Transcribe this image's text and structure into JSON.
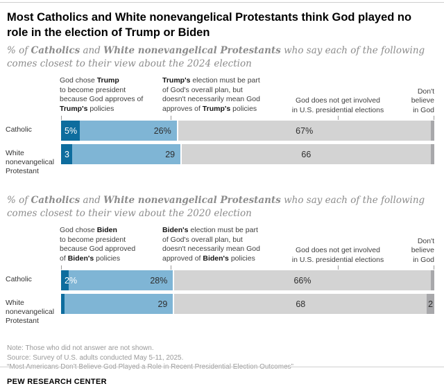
{
  "header": {
    "title": "Most Catholics and White nonevangelical Protestants think God played no role in the election of Trump or Biden"
  },
  "colors": {
    "dark_blue": "#0e6d9e",
    "light_blue": "#7fb5d5",
    "gray": "#d3d3d3",
    "dark_gray": "#a8a8ab",
    "rule": "#cfcfcf"
  },
  "chart_data": [
    {
      "type": "bar",
      "stacked": true,
      "orientation": "horizontal",
      "unit": "%",
      "axis_range": [
        0,
        100
      ],
      "election": "2024",
      "subtitle_parts": [
        {
          "t": "% of "
        },
        {
          "t": "Catholics",
          "b": true
        },
        {
          "t": " and "
        },
        {
          "t": "White nonevangelical Protestants",
          "b": true
        },
        {
          "t": " who say each of the following comes closest to their view about the 2024 election"
        }
      ],
      "column_headers": [
        {
          "parts": [
            {
              "t": "God chose "
            },
            {
              "t": "Trump",
              "b": true
            },
            {
              "t": "\nto become president\nbecause God approves of\n"
            },
            {
              "t": "Trump's",
              "b": true
            },
            {
              "t": " policies"
            }
          ]
        },
        {
          "parts": [
            {
              "t": "Trump's",
              "b": true
            },
            {
              "t": " election must be part\nof God's overall plan, but\ndoesn't necessarily mean God\napproves of "
            },
            {
              "t": "Trump's",
              "b": true
            },
            {
              "t": " policies"
            }
          ]
        },
        {
          "parts": [
            {
              "t": "God does not get involved\nin U.S. presidential elections"
            }
          ]
        },
        {
          "parts": [
            {
              "t": "Don't\nbelieve\nin God"
            }
          ]
        }
      ],
      "categories": [
        "Catholic",
        "White nonevangelical Protestant"
      ],
      "series": [
        {
          "name": "God chose Trump to become president because God approves of Trump's policies",
          "color": "dark_blue",
          "values": [
            5,
            3
          ]
        },
        {
          "name": "Trump's election must be part of God's overall plan, but doesn't necessarily mean God approves of Trump's policies",
          "color": "light_blue",
          "values": [
            26,
            29
          ]
        },
        {
          "name": "God does not get involved in U.S. presidential elections",
          "color": "gray",
          "values": [
            67,
            66
          ]
        },
        {
          "name": "Don't believe in God",
          "color": "dark_gray",
          "values": [
            1,
            1
          ]
        }
      ],
      "value_labels": [
        [
          "5%",
          "26%",
          "67%",
          ""
        ],
        [
          "3",
          "29",
          "66",
          ""
        ]
      ]
    },
    {
      "type": "bar",
      "stacked": true,
      "orientation": "horizontal",
      "unit": "%",
      "axis_range": [
        0,
        100
      ],
      "election": "2020",
      "subtitle_parts": [
        {
          "t": "% of "
        },
        {
          "t": "Catholics",
          "b": true
        },
        {
          "t": " and "
        },
        {
          "t": "White nonevangelical Protestants",
          "b": true
        },
        {
          "t": " who say each of the following comes closest to their view about the 2020 election"
        }
      ],
      "column_headers": [
        {
          "parts": [
            {
              "t": "God chose "
            },
            {
              "t": "Biden",
              "b": true
            },
            {
              "t": "\nto become president\nbecause God approved\nof "
            },
            {
              "t": "Biden's",
              "b": true
            },
            {
              "t": " policies"
            }
          ]
        },
        {
          "parts": [
            {
              "t": "Biden's",
              "b": true
            },
            {
              "t": " election must be part\nof God's overall plan, but\ndoesn't necessarily mean God\napproved of "
            },
            {
              "t": "Biden's",
              "b": true
            },
            {
              "t": " policies"
            }
          ]
        },
        {
          "parts": [
            {
              "t": "God does not get involved\nin U.S. presidential elections"
            }
          ]
        },
        {
          "parts": [
            {
              "t": "Don't\nbelieve\nin God"
            }
          ]
        }
      ],
      "categories": [
        "Catholic",
        "White nonevangelical Protestant"
      ],
      "series": [
        {
          "name": "God chose Biden to become president because God approved of Biden's policies",
          "color": "dark_blue",
          "values": [
            2,
            1
          ]
        },
        {
          "name": "Biden's election must be part of God's overall plan, but doesn't necessarily mean God approved of Biden's policies",
          "color": "light_blue",
          "values": [
            28,
            29
          ]
        },
        {
          "name": "God does not get involved in U.S. presidential elections",
          "color": "gray",
          "values": [
            66,
            68
          ]
        },
        {
          "name": "Don't believe in God",
          "color": "dark_gray",
          "values": [
            1,
            2
          ]
        }
      ],
      "value_labels": [
        [
          "2%",
          "28%",
          "66%",
          ""
        ],
        [
          "",
          "29",
          "68",
          "2"
        ]
      ]
    }
  ],
  "footer": {
    "note": "Note: Those who did not answer are not shown.",
    "source": "Source: Survey of U.S. adults conducted May 5-11, 2025.",
    "report_title": "“Most Americans Don’t Believe God Played a Role in Recent Presidential Election Outcomes”",
    "brand": "PEW RESEARCH CENTER"
  }
}
